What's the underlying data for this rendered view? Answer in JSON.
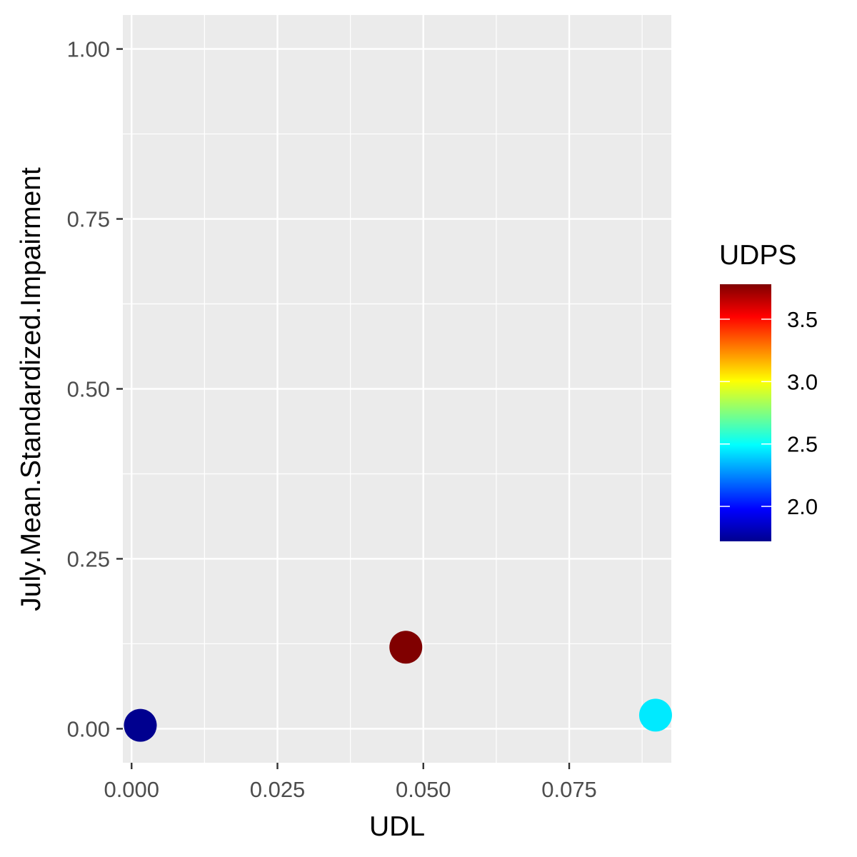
{
  "chart_data": {
    "type": "scatter",
    "xlabel": "UDL",
    "ylabel": "July.Mean.Standardized.Impairment",
    "xlim": [
      -0.0015,
      0.0925
    ],
    "ylim": [
      -0.05,
      1.05
    ],
    "x_ticks": [
      0.0,
      0.025,
      0.05,
      0.075
    ],
    "x_tick_labels": [
      "0.000",
      "0.025",
      "0.050",
      "0.075"
    ],
    "y_ticks": [
      0.0,
      0.25,
      0.5,
      0.75,
      1.0
    ],
    "y_tick_labels": [
      "0.00",
      "0.25",
      "0.50",
      "0.75",
      "1.00"
    ],
    "grid": true,
    "panel_background": "#EBEBEB",
    "grid_color": "#FFFFFF",
    "points": [
      {
        "x": 0.0015,
        "y": 0.005,
        "color_value": 1.72
      },
      {
        "x": 0.047,
        "y": 0.12,
        "color_value": 3.78
      },
      {
        "x": 0.0898,
        "y": 0.02,
        "color_value": 2.45
      }
    ],
    "legend": {
      "title": "UDPS",
      "placement": "right",
      "range": [
        1.72,
        3.78
      ],
      "ticks": [
        2.0,
        2.5,
        3.0,
        3.5
      ],
      "tick_labels": [
        "2.0",
        "2.5",
        "3.0",
        "3.5"
      ],
      "colorscale": [
        "#00008F",
        "#0000FF",
        "#0080FF",
        "#00FFFF",
        "#80FF80",
        "#FFFF00",
        "#FF8000",
        "#FF0000",
        "#800000"
      ]
    }
  }
}
